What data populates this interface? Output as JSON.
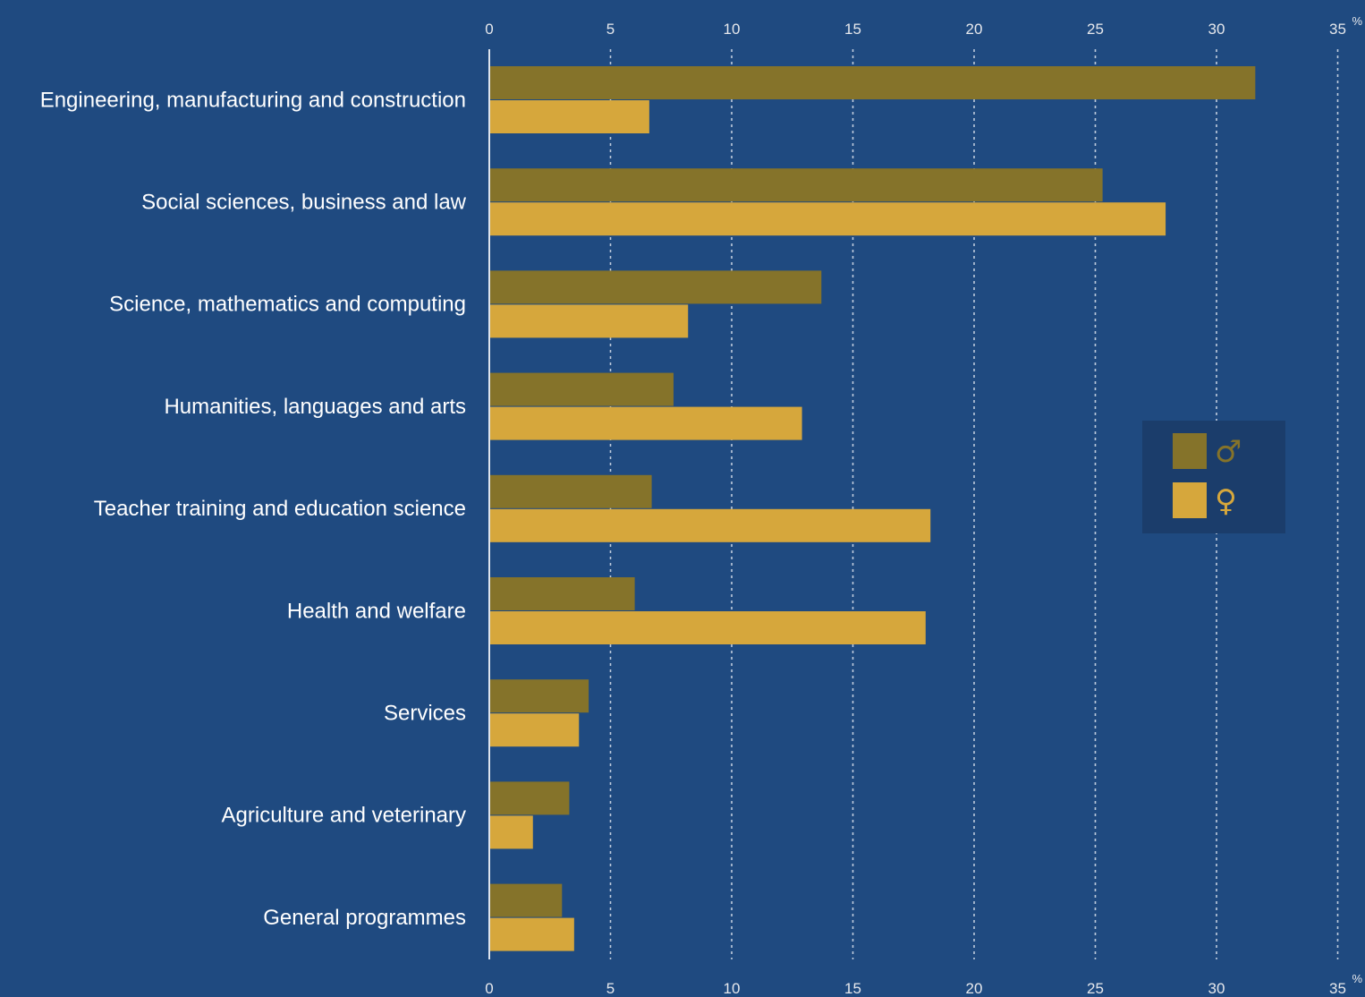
{
  "chart_data": {
    "type": "bar",
    "orientation": "horizontal",
    "categories": [
      "Engineering, manufacturing and construction",
      "Social sciences, business and law",
      "Science, mathematics and computing",
      "Humanities, languages and arts",
      "Teacher training and education science",
      "Health and welfare",
      "Services",
      "Agriculture and veterinary",
      "General programmes"
    ],
    "series": [
      {
        "symbol": "♂",
        "color": "#85732a",
        "values": [
          31.6,
          25.3,
          13.7,
          7.6,
          6.7,
          6.0,
          4.1,
          3.3,
          3.0
        ]
      },
      {
        "symbol": "♀",
        "color": "#d6a73c",
        "values": [
          6.6,
          27.9,
          8.2,
          12.9,
          18.2,
          18.0,
          3.7,
          1.8,
          3.5
        ]
      }
    ],
    "xlim": [
      0,
      35
    ],
    "xticks": [
      0,
      5,
      10,
      15,
      20,
      25,
      30,
      35
    ],
    "unit": "%",
    "grid": true,
    "legend_position": "right"
  },
  "colors": {
    "background": "#1f4a80",
    "legend_background": "#1b3d6b",
    "axis": "#dce3ee",
    "grid": "#dce3ee"
  }
}
